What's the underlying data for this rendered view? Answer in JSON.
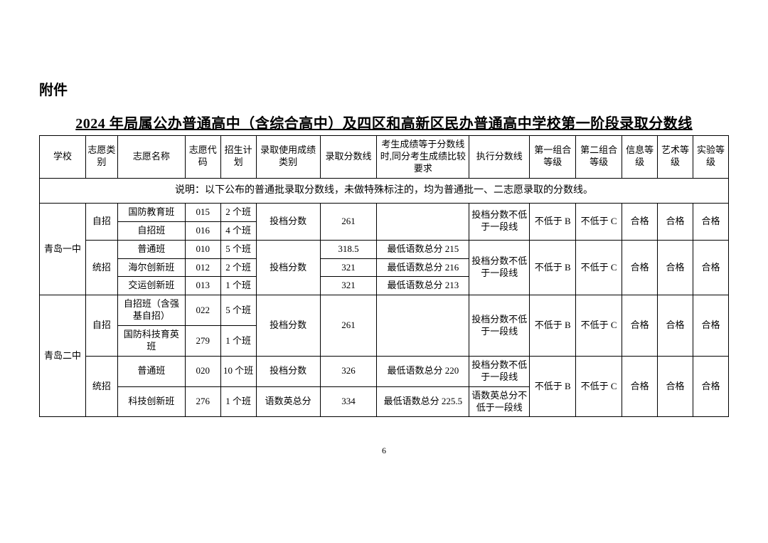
{
  "attachment_label": "附件",
  "title": "2024 年局属公办普通高中（含综合高中）及四区和高新区民办普通高中学校第一阶段录取分数线",
  "page_number": "6",
  "headers": {
    "school": "学校",
    "type": "志愿类别",
    "name": "志愿名称",
    "code": "志愿代码",
    "plan": "招生计划",
    "score_type": "录取使用成绩类别",
    "cutoff": "录取分数线",
    "tiebreak": "考生成绩等于分数线时,同分考生成绩比较要求",
    "exec": "执行分数线",
    "g1": "第一组合等级",
    "g2": "第二组合等级",
    "info": "信息等级",
    "art": "艺术等级",
    "exp": "实验等级"
  },
  "note": "说明：以下公布的普通批录取分数线，未做特殊标注的，均为普通批一、二志愿录取的分数线。",
  "schools": {
    "qd1": {
      "name": "青岛一中",
      "zizhao": {
        "label": "自招",
        "row1": {
          "name": "国防教育班",
          "code": "015",
          "plan": "2 个班"
        },
        "row2": {
          "name": "自招班",
          "code": "016",
          "plan": "4 个班"
        },
        "score_type": "投档分数",
        "cutoff": "261",
        "tiebreak": "",
        "exec": "投档分数不低于一段线",
        "g1": "不低于 B",
        "g2": "不低于 C",
        "info": "合格",
        "art": "合格",
        "exp": "合格"
      },
      "tongzhao": {
        "label": "统招",
        "row1": {
          "name": "普通班",
          "code": "010",
          "plan": "5 个班",
          "cutoff": "318.5",
          "tiebreak": "最低语数总分 215"
        },
        "row2": {
          "name": "海尔创新班",
          "code": "012",
          "plan": "2 个班",
          "cutoff": "321",
          "tiebreak": "最低语数总分 216"
        },
        "row3": {
          "name": "交运创新班",
          "code": "013",
          "plan": "1 个班",
          "cutoff": "321",
          "tiebreak": "最低语数总分 213"
        },
        "score_type": "投档分数",
        "exec": "投档分数不低于一段线",
        "g1": "不低于 B",
        "g2": "不低于 C",
        "info": "合格",
        "art": "合格",
        "exp": "合格"
      }
    },
    "qd2": {
      "name": "青岛二中",
      "zizhao": {
        "label": "自招",
        "row1": {
          "name": "自招班（含强基自招）",
          "code": "022",
          "plan": "5 个班"
        },
        "row2": {
          "name": "国防科技育英班",
          "code": "279",
          "plan": "1 个班"
        },
        "score_type": "投档分数",
        "cutoff": "261",
        "tiebreak": "",
        "exec": "投档分数不低于一段线",
        "g1": "不低于 B",
        "g2": "不低于 C",
        "info": "合格",
        "art": "合格",
        "exp": "合格"
      },
      "tongzhao": {
        "label": "统招",
        "row1": {
          "name": "普通班",
          "code": "020",
          "plan": "10 个班",
          "score_type": "投档分数",
          "cutoff": "326",
          "tiebreak": "最低语数总分 220",
          "exec": "投档分数不低于一段线"
        },
        "row2": {
          "name": "科技创新班",
          "code": "276",
          "plan": "1 个班",
          "score_type": "语数英总分",
          "cutoff": "334",
          "tiebreak": "最低语数总分 225.5",
          "exec": "语数英总分不低于一段线"
        },
        "g1": "不低于 B",
        "g2": "不低于 C",
        "info": "合格",
        "art": "合格",
        "exp": "合格"
      }
    }
  }
}
